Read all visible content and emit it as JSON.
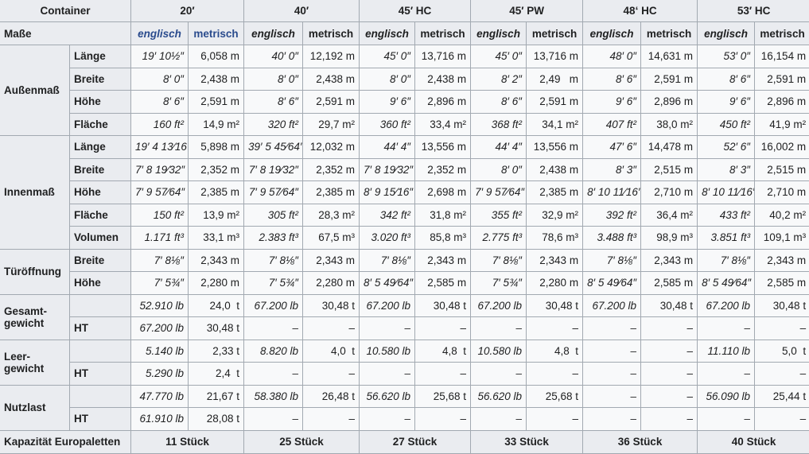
{
  "header": {
    "container_label": "Container",
    "masse_label": "Maße",
    "containers": [
      "20′",
      "40′",
      "45′ HC",
      "45′ PW",
      "48‘ HC",
      "53′ HC"
    ],
    "unit_english": "englisch",
    "unit_metric": "metrisch",
    "link_color": "#2a4b8d"
  },
  "groups": [
    {
      "label": "Außenmaß",
      "rows": [
        {
          "label": "Länge",
          "values": [
            "19′ 10½″",
            "6,058 m",
            "40′ 0″",
            "12,192 m",
            "45′ 0″",
            "13,716 m",
            "45′ 0″",
            "13,716 m",
            "48′ 0″",
            "14,631 m",
            "53′ 0″",
            "16,154 m"
          ]
        },
        {
          "label": "Breite",
          "values": [
            "8′ 0″",
            "2,438 m",
            "8′ 0″",
            "2,438 m",
            "8′ 0″",
            "2,438 m",
            "8′ 2″",
            "2,49   m",
            "8′ 6″",
            "2,591 m",
            "8′ 6″",
            "2,591 m"
          ]
        },
        {
          "label": "Höhe",
          "values": [
            "8′ 6″",
            "2,591 m",
            "8′ 6″",
            "2,591 m",
            "9′ 6″",
            "2,896 m",
            "8′ 6″",
            "2,591 m",
            "9′ 6″",
            "2,896 m",
            "9′ 6″",
            "2,896 m"
          ]
        },
        {
          "label": "Fläche",
          "values": [
            "160 ft²",
            "14,9 m²",
            "320 ft²",
            "29,7 m²",
            "360 ft²",
            "33,4 m²",
            "368 ft²",
            "34,1 m²",
            "407 ft²",
            "38,0 m²",
            "450 ft²",
            "41,9 m²"
          ]
        }
      ]
    },
    {
      "label": "Innenmaß",
      "rows": [
        {
          "label": "Länge",
          "values": [
            "19′ 4 13⁄16″",
            "5,898 m",
            "39′ 5 45⁄64″",
            "12,032 m",
            "44′ 4″",
            "13,556 m",
            "44′ 4″",
            "13,556 m",
            "47′ 6″",
            "14,478 m",
            "52′ 6″",
            "16,002 m"
          ]
        },
        {
          "label": "Breite",
          "values": [
            "7′ 8 19⁄32″",
            "2,352 m",
            "7′ 8 19⁄32″",
            "2,352 m",
            "7′ 8 19⁄32″",
            "2,352 m",
            "8′ 0″",
            "2,438 m",
            "8′ 3″",
            "2,515 m",
            "8′ 3″",
            "2,515 m"
          ]
        },
        {
          "label": "Höhe",
          "values": [
            "7′ 9 57⁄64″",
            "2,385 m",
            "7′ 9 57⁄64″",
            "2,385 m",
            "8′ 9 15⁄16″",
            "2,698 m",
            "7′ 9 57⁄64″",
            "2,385 m",
            "8′ 10 11⁄16″",
            "2,710 m",
            "8′ 10 11⁄16″",
            "2,710 m"
          ]
        },
        {
          "label": "Fläche",
          "values": [
            "150 ft²",
            "13,9 m²",
            "305 ft²",
            "28,3 m²",
            "342 ft²",
            "31,8 m²",
            "355 ft²",
            "32,9 m²",
            "392 ft²",
            "36,4 m²",
            "433 ft²",
            "40,2 m²"
          ]
        },
        {
          "label": "Volumen",
          "values": [
            "1.171 ft³",
            "33,1 m³",
            "2.383 ft³",
            "67,5 m³",
            "3.020 ft³",
            "85,8 m³",
            "2.775 ft³",
            "78,6 m³",
            "3.488 ft³",
            "98,9 m³",
            "3.851 ft³",
            "109,1 m³"
          ]
        }
      ]
    },
    {
      "label": "Türöffnung",
      "rows": [
        {
          "label": "Breite",
          "values": [
            "7′ 8⅛″",
            "2,343 m",
            "7′ 8⅛″",
            "2,343 m",
            "7′ 8⅛″",
            "2,343 m",
            "7′ 8⅛″",
            "2,343 m",
            "7′ 8⅛″",
            "2,343 m",
            "7′ 8⅛″",
            "2,343 m"
          ]
        },
        {
          "label": "Höhe",
          "values": [
            "7′ 5¾″",
            "2,280 m",
            "7′ 5¾″",
            "2,280 m",
            "8′ 5 49⁄64″",
            "2,585 m",
            "7′ 5¾″",
            "2,280 m",
            "8′ 5 49⁄64″",
            "2,585 m",
            "8′ 5 49⁄64″",
            "2,585 m"
          ]
        }
      ]
    },
    {
      "label": "Gesamt-gewicht",
      "rows": [
        {
          "label": "",
          "values": [
            "52.910 lb",
            "24,0  t",
            "67.200 lb",
            "30,48 t",
            "67.200 lb",
            "30,48 t",
            "67.200 lb",
            "30,48 t",
            "67.200 lb",
            "30,48 t",
            "67.200 lb",
            "30,48 t"
          ]
        },
        {
          "label": "HT",
          "values": [
            "67.200 lb",
            "30,48 t",
            "–",
            "–",
            "–",
            "–",
            "–",
            "–",
            "–",
            "–",
            "–",
            "–"
          ]
        }
      ]
    },
    {
      "label": "Leer-gewicht",
      "rows": [
        {
          "label": "",
          "values": [
            "5.140 lb",
            "2,33 t",
            "8.820 lb",
            "4,0  t",
            "10.580 lb",
            "4,8  t",
            "10.580 lb",
            "4,8  t",
            "–",
            "–",
            "11.110 lb",
            "5,0  t"
          ]
        },
        {
          "label": "HT",
          "values": [
            "5.290 lb",
            "2,4  t",
            "–",
            "–",
            "–",
            "–",
            "–",
            "–",
            "–",
            "–",
            "–",
            "–"
          ]
        }
      ]
    },
    {
      "label": "Nutzlast",
      "rows": [
        {
          "label": "",
          "values": [
            "47.770 lb",
            "21,67 t",
            "58.380 lb",
            "26,48 t",
            "56.620 lb",
            "25,68 t",
            "56.620 lb",
            "25,68 t",
            "–",
            "–",
            "56.090 lb",
            "25,44 t"
          ]
        },
        {
          "label": "HT",
          "values": [
            "61.910 lb",
            "28,08 t",
            "–",
            "–",
            "–",
            "–",
            "–",
            "–",
            "–",
            "–",
            "–",
            "–"
          ]
        }
      ]
    }
  ],
  "capacity": {
    "label": "Kapazität Europaletten",
    "values": [
      "11 Stück",
      "25 Stück",
      "27 Stück",
      "33 Stück",
      "36 Stück",
      "40 Stück"
    ]
  }
}
